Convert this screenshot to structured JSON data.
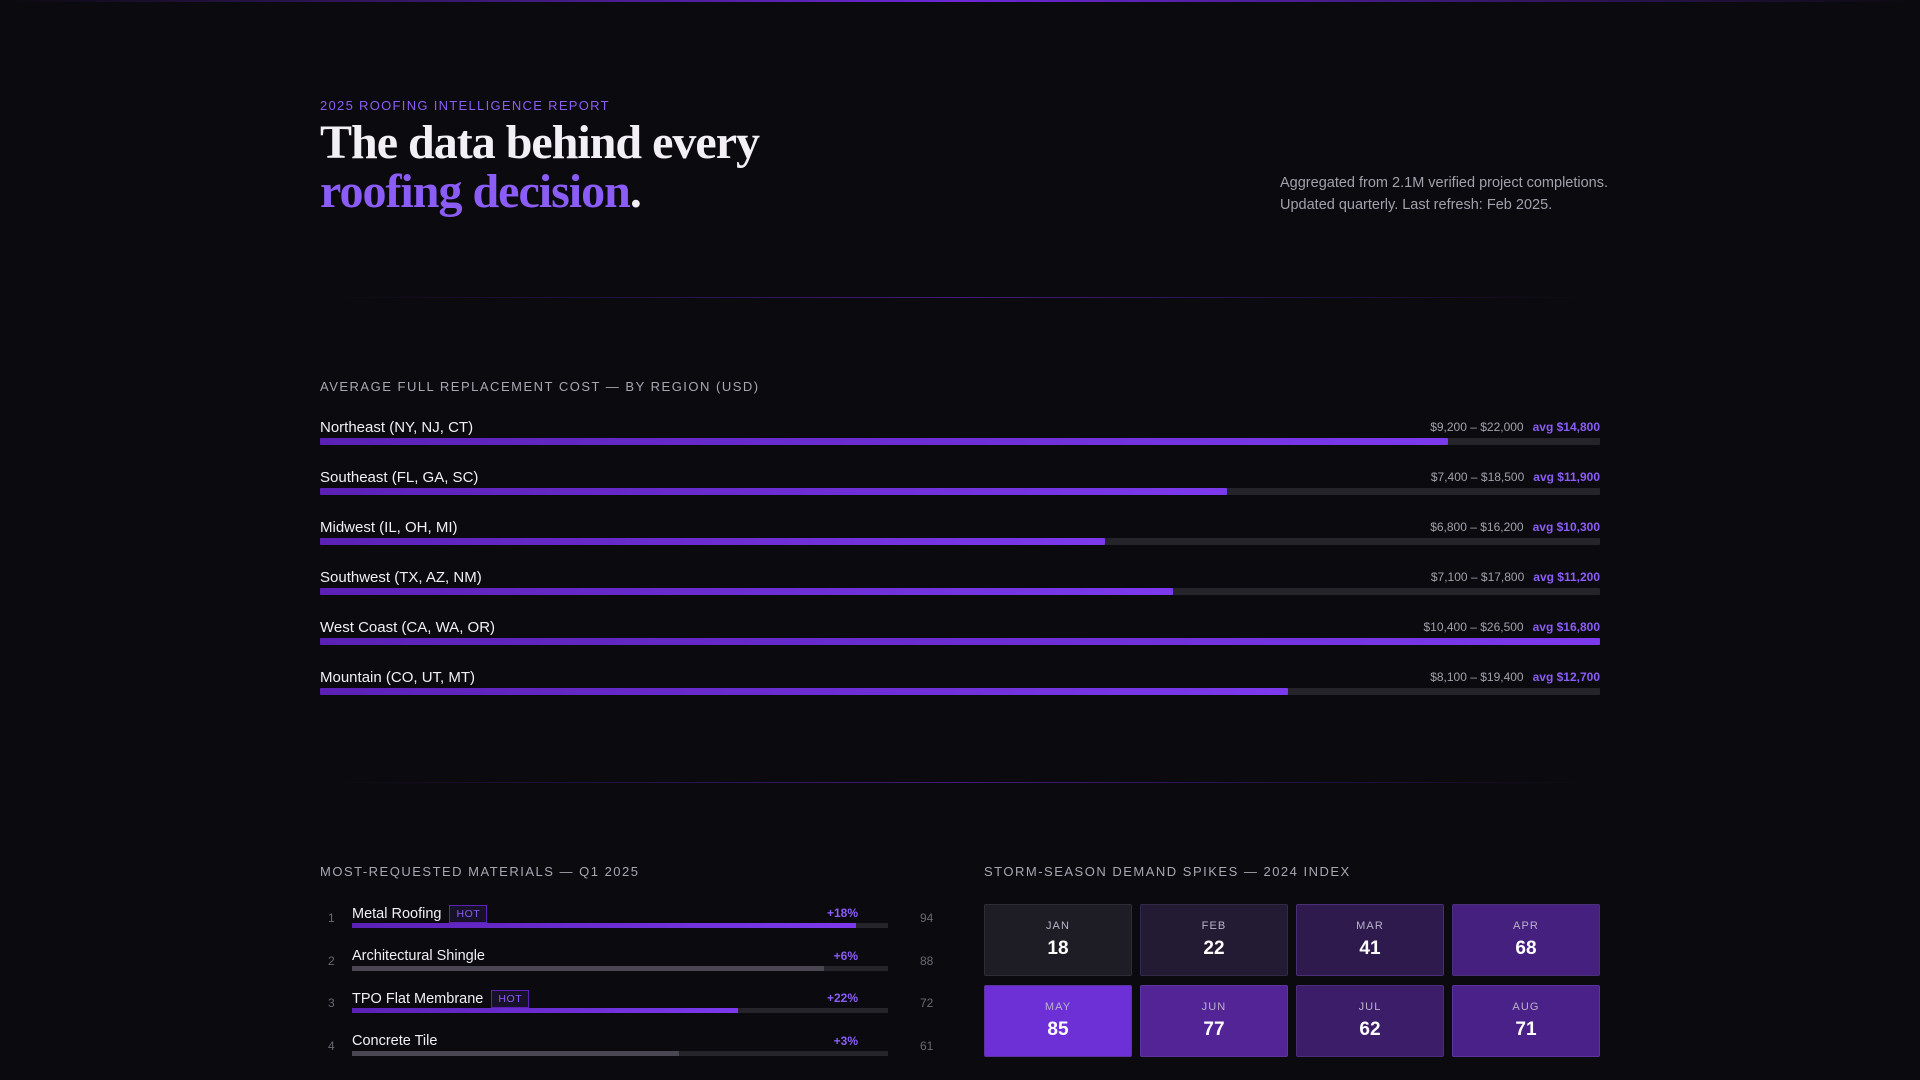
{
  "hero": {
    "eyebrow": "2025 ROOFING INTELLIGENCE REPORT",
    "headline_line1": "The data behind every",
    "headline_accent": "roofing decision",
    "headline_period": ".",
    "meta_line1": "Aggregated from 2.1M verified project completions.",
    "meta_line2": "Updated quarterly. Last refresh: Feb 2025."
  },
  "regions": {
    "label": "AVERAGE FULL REPLACEMENT COST — BY REGION (USD)",
    "scale_max": 16800,
    "items": [
      {
        "name": "Northeast (NY, NJ, CT)",
        "range": "$9,200 – $22,000",
        "avg_label": "avg $14,800",
        "avg": 14800
      },
      {
        "name": "Southeast (FL, GA, SC)",
        "range": "$7,400 – $18,500",
        "avg_label": "avg $11,900",
        "avg": 11900
      },
      {
        "name": "Midwest (IL, OH, MI)",
        "range": "$6,800 – $16,200",
        "avg_label": "avg $10,300",
        "avg": 10300
      },
      {
        "name": "Southwest (TX, AZ, NM)",
        "range": "$7,100 – $17,800",
        "avg_label": "avg $11,200",
        "avg": 11200
      },
      {
        "name": "West Coast (CA, WA, OR)",
        "range": "$10,400 – $26,500",
        "avg_label": "avg $16,800",
        "avg": 16800
      },
      {
        "name": "Mountain (CO, UT, MT)",
        "range": "$8,100 – $19,400",
        "avg_label": "avg $12,700",
        "avg": 12700
      }
    ]
  },
  "materials": {
    "label": "MOST-REQUESTED MATERIALS — Q1 2025",
    "hot_badge": "HOT",
    "items": [
      {
        "rank": "1",
        "name": "Metal Roofing",
        "hot": true,
        "delta": "+18%",
        "score": "94",
        "level": 0.94
      },
      {
        "rank": "2",
        "name": "Architectural Shingle",
        "hot": false,
        "delta": "+6%",
        "score": "88",
        "level": 0.88
      },
      {
        "rank": "3",
        "name": "TPO Flat Membrane",
        "hot": true,
        "delta": "+22%",
        "score": "72",
        "level": 0.72
      },
      {
        "rank": "4",
        "name": "Concrete Tile",
        "hot": false,
        "delta": "+3%",
        "score": "61",
        "level": 0.61
      }
    ]
  },
  "storm": {
    "label": "STORM-SEASON DEMAND SPIKES — 2024 INDEX",
    "months": [
      {
        "month": "JAN",
        "value": "18",
        "index": 18
      },
      {
        "month": "FEB",
        "value": "22",
        "index": 22
      },
      {
        "month": "MAR",
        "value": "41",
        "index": 41
      },
      {
        "month": "APR",
        "value": "68",
        "index": 68
      },
      {
        "month": "MAY",
        "value": "85",
        "index": 85
      },
      {
        "month": "JUN",
        "value": "77",
        "index": 77
      },
      {
        "month": "JUL",
        "value": "62",
        "index": 62
      },
      {
        "month": "AUG",
        "value": "71",
        "index": 71
      }
    ]
  }
}
